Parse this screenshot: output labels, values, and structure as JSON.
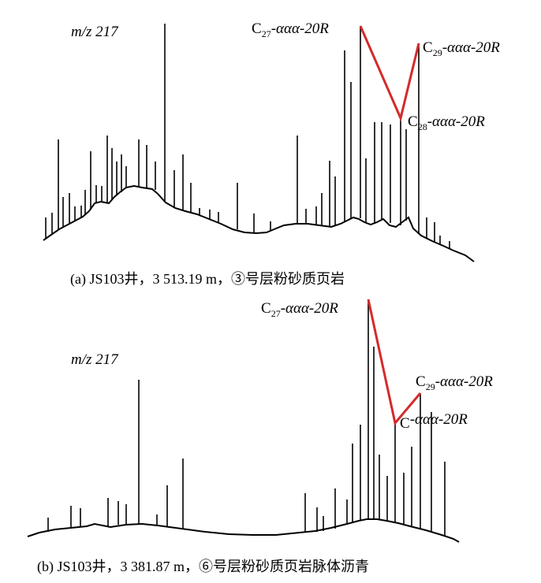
{
  "charts": [
    {
      "ion_label": "m/z 217",
      "caption": "(a) JS103井，3 513.19 m，③号层粉砂质页岩",
      "line_color": "#d42a2a",
      "peak_labels": [
        {
          "main": "C",
          "sub": "27",
          "rest": "-ααα-20R"
        },
        {
          "main": "C",
          "sub": "29",
          "rest": "-ααα-20R"
        },
        {
          "main": "C",
          "sub": "28",
          "rest": "-ααα-20R"
        }
      ]
    },
    {
      "ion_label": "m/z 217",
      "caption": "(b) JS103井，3 381.87 m，⑥号层粉砂质页岩脉体沥青",
      "line_color": "#d42a2a",
      "peak_labels": [
        {
          "main": "C",
          "sub": "27",
          "rest": "-ααα-20R"
        },
        {
          "main": "C",
          "sub": "29",
          "rest": "-ααα-20R"
        },
        {
          "main": "C",
          "sub": "",
          "rest": "-ααα-20R"
        }
      ]
    }
  ],
  "chart_data": [
    {
      "type": "line",
      "title": "m/z 217",
      "caption": "(a) JS103井，3 513.19 m，③号层粉砂质页岩",
      "highlighted_peaks": [
        {
          "name": "C27-ααα-20R",
          "relative_height": 1.0
        },
        {
          "name": "C28-ααα-20R",
          "relative_height": 0.51
        },
        {
          "name": "C29-ααα-20R",
          "relative_height": 0.9
        }
      ]
    },
    {
      "type": "line",
      "title": "m/z 217",
      "caption": "(b) JS103井，3 381.87 m，⑥号层粉砂质页岩脉体沥青",
      "highlighted_peaks": [
        {
          "name": "C27-ααα-20R",
          "relative_height": 1.0
        },
        {
          "name": "C-ααα-20R",
          "relative_height": 0.53
        },
        {
          "name": "C29-ααα-20R",
          "relative_height": 0.64
        }
      ]
    }
  ]
}
